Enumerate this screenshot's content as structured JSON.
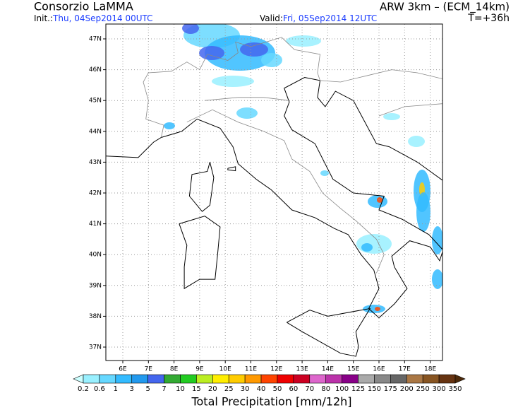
{
  "header": {
    "org": "Consorzio LaMMA",
    "init_label": "Init.:",
    "init_time": "Thu, 04Sep2014 00UTC",
    "valid_label": "Valid:",
    "valid_time": "Fri, 05Sep2014 12UTC",
    "model": "ARW 3km – (ECM_14km)",
    "lead": "T=+36h"
  },
  "map": {
    "lat_labels": [
      "47N",
      "46N",
      "45N",
      "44N",
      "43N",
      "42N",
      "41N",
      "40N",
      "39N",
      "38N",
      "37N"
    ],
    "lon_labels": [
      "6E",
      "7E",
      "8E",
      "9E",
      "10E",
      "11E",
      "12E",
      "13E",
      "14E",
      "15E",
      "16E",
      "17E",
      "18E"
    ]
  },
  "legend": {
    "title": "Total Precipitation [mm/12h]",
    "labels": [
      "0.2",
      "0.6",
      "1",
      "3",
      "5",
      "7",
      "10",
      "15",
      "20",
      "25",
      "30",
      "40",
      "50",
      "60",
      "70",
      "80",
      "100",
      "125",
      "150",
      "175",
      "200",
      "250",
      "300",
      "350"
    ],
    "colors": [
      "#ccffff",
      "#99f0ff",
      "#66d8ff",
      "#33bbff",
      "#2299ee",
      "#4466ee",
      "#33aa33",
      "#22cc22",
      "#bbee22",
      "#ffee00",
      "#ffcc00",
      "#ff9900",
      "#ff4400",
      "#ee0000",
      "#cc0022",
      "#dd66cc",
      "#bb33aa",
      "#880088",
      "#aaaaaa",
      "#888888",
      "#666666",
      "#aa7744",
      "#885522",
      "#663311",
      "#4d2a0a"
    ]
  }
}
